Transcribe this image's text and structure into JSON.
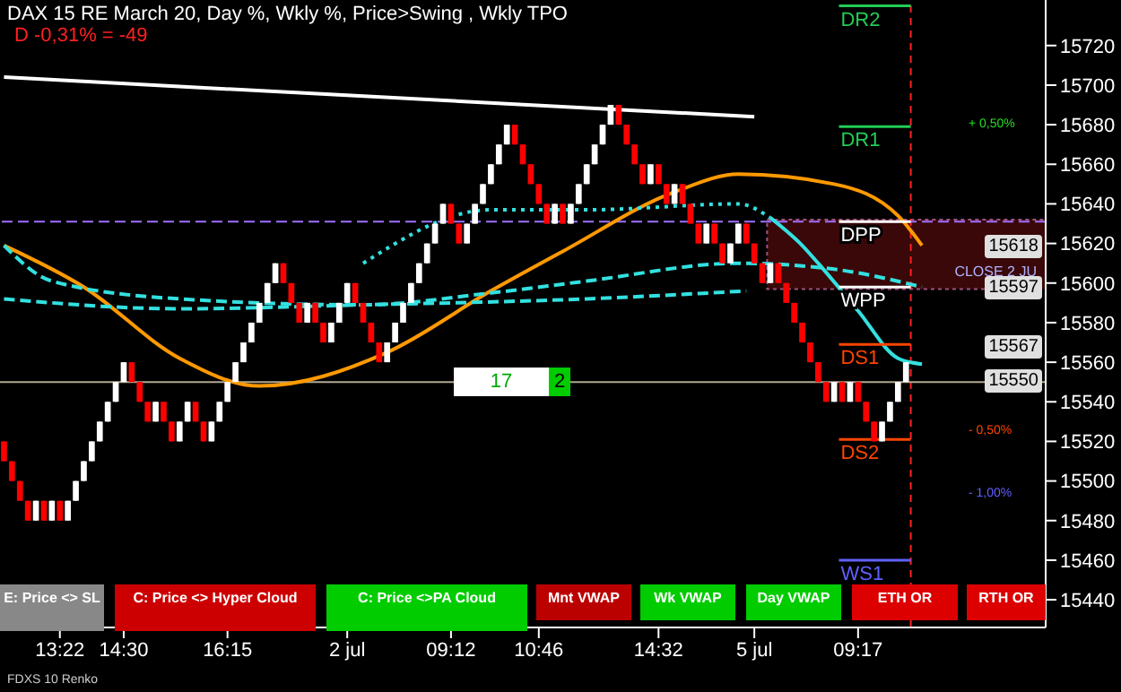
{
  "chart_data": {
    "type": "candlestick",
    "title": "DAX 15 RE March 20, Day %, Wkly %, Price>Swing  , Wkly TPO",
    "subtitle": "D -0,31% = -49",
    "categories": [
      null,
      null,
      null,
      null,
      null,
      null,
      null,
      "13:22",
      null,
      null,
      null,
      null,
      null,
      null,
      null,
      "14:30",
      null,
      null,
      null,
      null,
      null,
      null,
      null,
      null,
      null,
      null,
      null,
      null,
      "16:15",
      null,
      null,
      null,
      null,
      null,
      null,
      null,
      null,
      null,
      null,
      null,
      null,
      null,
      null,
      "2 jul",
      null,
      null,
      null,
      null,
      null,
      null,
      null,
      null,
      null,
      null,
      null,
      null,
      "09:12",
      null,
      null,
      null,
      null,
      null,
      null,
      null,
      null,
      null,
      null,
      "10:46",
      null,
      null,
      null,
      null,
      null,
      null,
      null,
      null,
      null,
      null,
      null,
      null,
      null,
      null,
      "14:32",
      null,
      null,
      null,
      null,
      null,
      null,
      null,
      null,
      null,
      null,
      null,
      "5 jul",
      null,
      null,
      null,
      null,
      null,
      null,
      null,
      null,
      null,
      null,
      null,
      null,
      "09:17",
      null,
      null,
      null,
      null,
      null,
      null,
      null,
      null,
      null,
      null,
      null,
      null,
      null,
      null,
      null,
      null,
      null,
      null,
      null,
      null,
      null,
      null,
      null
    ],
    "ohlc": [
      [
        15520,
        15520,
        15510,
        15510
      ],
      [
        15510,
        15510,
        15500,
        15500
      ],
      [
        15500,
        15500,
        15490,
        15490
      ],
      [
        15490,
        15490,
        15480,
        15480
      ],
      [
        15480,
        15490,
        15480,
        15490
      ],
      [
        15490,
        15490,
        15480,
        15480
      ],
      [
        15480,
        15490,
        15480,
        15490
      ],
      [
        15490,
        15490,
        15480,
        15480
      ],
      [
        15480,
        15490,
        15480,
        15490
      ],
      [
        15490,
        15500,
        15490,
        15500
      ],
      [
        15500,
        15510,
        15500,
        15510
      ],
      [
        15510,
        15520,
        15510,
        15520
      ],
      [
        15520,
        15530,
        15520,
        15530
      ],
      [
        15530,
        15540,
        15530,
        15540
      ],
      [
        15540,
        15550,
        15540,
        15550
      ],
      [
        15550,
        15560,
        15550,
        15560
      ],
      [
        15560,
        15560,
        15550,
        15550
      ],
      [
        15550,
        15550,
        15540,
        15540
      ],
      [
        15540,
        15540,
        15530,
        15530
      ],
      [
        15530,
        15540,
        15530,
        15540
      ],
      [
        15540,
        15540,
        15530,
        15530
      ],
      [
        15530,
        15530,
        15520,
        15520
      ],
      [
        15520,
        15530,
        15520,
        15530
      ],
      [
        15530,
        15540,
        15530,
        15540
      ],
      [
        15540,
        15540,
        15530,
        15530
      ],
      [
        15530,
        15530,
        15520,
        15520
      ],
      [
        15520,
        15530,
        15520,
        15530
      ],
      [
        15530,
        15540,
        15530,
        15540
      ],
      [
        15540,
        15550,
        15540,
        15550
      ],
      [
        15550,
        15560,
        15550,
        15560
      ],
      [
        15560,
        15570,
        15560,
        15570
      ],
      [
        15570,
        15580,
        15570,
        15580
      ],
      [
        15580,
        15590,
        15580,
        15590
      ],
      [
        15590,
        15600,
        15590,
        15600
      ],
      [
        15600,
        15610,
        15600,
        15610
      ],
      [
        15610,
        15610,
        15600,
        15600
      ],
      [
        15600,
        15600,
        15590,
        15590
      ],
      [
        15590,
        15590,
        15580,
        15580
      ],
      [
        15580,
        15590,
        15580,
        15590
      ],
      [
        15590,
        15590,
        15580,
        15580
      ],
      [
        15580,
        15580,
        15570,
        15570
      ],
      [
        15570,
        15580,
        15570,
        15580
      ],
      [
        15580,
        15590,
        15580,
        15590
      ],
      [
        15590,
        15600,
        15590,
        15600
      ],
      [
        15600,
        15600,
        15590,
        15590
      ],
      [
        15590,
        15590,
        15580,
        15580
      ],
      [
        15580,
        15580,
        15570,
        15570
      ],
      [
        15570,
        15570,
        15560,
        15560
      ],
      [
        15560,
        15570,
        15560,
        15570
      ],
      [
        15570,
        15580,
        15570,
        15580
      ],
      [
        15580,
        15590,
        15580,
        15590
      ],
      [
        15590,
        15600,
        15590,
        15600
      ],
      [
        15600,
        15610,
        15600,
        15610
      ],
      [
        15610,
        15620,
        15610,
        15620
      ],
      [
        15620,
        15630,
        15620,
        15630
      ],
      [
        15630,
        15640,
        15630,
        15640
      ],
      [
        15640,
        15640,
        15630,
        15630
      ],
      [
        15630,
        15630,
        15620,
        15620
      ],
      [
        15620,
        15630,
        15620,
        15630
      ],
      [
        15630,
        15640,
        15630,
        15640
      ],
      [
        15640,
        15650,
        15640,
        15650
      ],
      [
        15650,
        15660,
        15650,
        15660
      ],
      [
        15660,
        15670,
        15660,
        15670
      ],
      [
        15670,
        15680,
        15670,
        15680
      ],
      [
        15680,
        15680,
        15670,
        15670
      ],
      [
        15670,
        15670,
        15660,
        15660
      ],
      [
        15660,
        15660,
        15650,
        15650
      ],
      [
        15650,
        15650,
        15640,
        15640
      ],
      [
        15640,
        15640,
        15630,
        15630
      ],
      [
        15630,
        15640,
        15630,
        15640
      ],
      [
        15640,
        15640,
        15630,
        15630
      ],
      [
        15630,
        15640,
        15630,
        15640
      ],
      [
        15640,
        15650,
        15640,
        15650
      ],
      [
        15650,
        15660,
        15650,
        15660
      ],
      [
        15660,
        15670,
        15660,
        15670
      ],
      [
        15670,
        15680,
        15670,
        15680
      ],
      [
        15680,
        15690,
        15680,
        15690
      ],
      [
        15690,
        15690,
        15680,
        15680
      ],
      [
        15680,
        15680,
        15670,
        15670
      ],
      [
        15670,
        15670,
        15660,
        15660
      ],
      [
        15660,
        15660,
        15650,
        15650
      ],
      [
        15650,
        15660,
        15650,
        15660
      ],
      [
        15660,
        15660,
        15650,
        15650
      ],
      [
        15650,
        15650,
        15640,
        15640
      ],
      [
        15640,
        15650,
        15640,
        15650
      ],
      [
        15650,
        15650,
        15640,
        15640
      ],
      [
        15640,
        15640,
        15630,
        15630
      ],
      [
        15630,
        15630,
        15620,
        15620
      ],
      [
        15620,
        15630,
        15620,
        15630
      ],
      [
        15630,
        15630,
        15620,
        15620
      ],
      [
        15620,
        15620,
        15610,
        15610
      ],
      [
        15610,
        15620,
        15610,
        15620
      ],
      [
        15620,
        15630,
        15620,
        15630
      ],
      [
        15630,
        15630,
        15620,
        15620
      ],
      [
        15620,
        15620,
        15610,
        15610
      ],
      [
        15610,
        15610,
        15600,
        15600
      ],
      [
        15600,
        15610,
        15600,
        15610
      ],
      [
        15610,
        15610,
        15600,
        15600
      ],
      [
        15600,
        15600,
        15590,
        15590
      ],
      [
        15590,
        15590,
        15580,
        15580
      ],
      [
        15580,
        15580,
        15570,
        15570
      ],
      [
        15570,
        15570,
        15560,
        15560
      ],
      [
        15560,
        15560,
        15550,
        15550
      ],
      [
        15550,
        15550,
        15540,
        15540
      ],
      [
        15540,
        15550,
        15540,
        15550
      ],
      [
        15550,
        15550,
        15540,
        15540
      ],
      [
        15540,
        15550,
        15540,
        15550
      ],
      [
        15550,
        15550,
        15540,
        15540
      ],
      [
        15540,
        15540,
        15530,
        15530
      ],
      [
        15530,
        15530,
        15520,
        15520
      ],
      [
        15520,
        15530,
        15520,
        15530
      ],
      [
        15530,
        15540,
        15530,
        15540
      ],
      [
        15540,
        15550,
        15540,
        15550
      ],
      [
        15550,
        15560,
        15550,
        15560
      ],
      null,
      null,
      null,
      null,
      null,
      null,
      null,
      null,
      null,
      null,
      null,
      null,
      null,
      null,
      null,
      null,
      null
    ],
    "colors": [
      "#ff0000",
      "#ff0000",
      "#ff0000",
      "#ff0000",
      "#ffffff",
      "#ff0000",
      "#ffffff",
      "#ff0000",
      "#ffffff",
      "#ffffff",
      "#ffffff",
      "#ffffff",
      "#ffffff",
      "#ffffff",
      "#ffffff",
      "#ffffff",
      "#ff0000",
      "#ff0000",
      "#ff0000",
      "#ffffff",
      "#ff0000",
      "#ff0000",
      "#ffffff",
      "#ffffff",
      "#ff0000",
      "#ff0000",
      "#ffffff",
      "#ffffff",
      "#ffffff",
      "#ffffff",
      "#ffffff",
      "#ffffff",
      "#ffffff",
      "#ffffff",
      "#ffffff",
      "#ff0000",
      "#ff0000",
      "#ff0000",
      "#ffffff",
      "#ff0000",
      "#ff0000",
      "#ffffff",
      "#ffffff",
      "#ffffff",
      "#ff0000",
      "#ff0000",
      "#ff0000",
      "#ff0000",
      "#ffffff",
      "#ffffff",
      "#ffffff",
      "#ffffff",
      "#ffffff",
      "#ffffff",
      "#ffffff",
      "#ffffff",
      "#ff0000",
      "#ff0000",
      "#ffffff",
      "#ffffff",
      "#ffffff",
      "#ffffff",
      "#ffffff",
      "#ffffff",
      "#ff0000",
      "#ff0000",
      "#ff0000",
      "#ff0000",
      "#ff0000",
      "#ffffff",
      "#ff0000",
      "#ffffff",
      "#ffffff",
      "#ffffff",
      "#ffffff",
      "#ffffff",
      "#ffffff",
      "#ff0000",
      "#ff0000",
      "#ff0000",
      "#ff0000",
      "#ffffff",
      "#ff0000",
      "#ff0000",
      "#ffffff",
      "#ff0000",
      "#ff0000",
      "#ff0000",
      "#ffffff",
      "#ff0000",
      "#ff0000",
      "#ffffff",
      "#ffffff",
      "#ff0000",
      "#ff0000",
      "#ff0000",
      "#ffffff",
      "#ff0000",
      "#ff0000",
      "#ff0000",
      "#ff0000",
      "#ff0000",
      "#ff0000",
      "#ff0000",
      "#ffffff",
      "#ff0000",
      "#ffffff",
      "#ff0000",
      "#ff0000",
      "#ff0000",
      "#ffffff",
      "#ffffff",
      "#ffffff",
      "#ffffff",
      null,
      null,
      null,
      null,
      null,
      null,
      null,
      null,
      null,
      null,
      null,
      null,
      null,
      null,
      null,
      null,
      null
    ],
    "series": [
      {
        "type": "line",
        "color": "#ff9900",
        "values": [
          15619,
          null,
          null,
          null,
          null,
          null,
          null,
          null,
          null,
          null,
          15598,
          null,
          null,
          null,
          null,
          null,
          null,
          null,
          null,
          null,
          null,
          null,
          15562,
          null,
          null,
          null,
          null,
          null,
          null,
          null,
          null,
          null,
          15548,
          null,
          null,
          null,
          null,
          null,
          null,
          null,
          null,
          null,
          null,
          null,
          null,
          null,
          null,
          null,
          15565,
          null,
          null,
          null,
          null,
          null,
          null,
          null,
          null,
          null,
          null,
          null,
          null,
          15596,
          null,
          null,
          null,
          null,
          null,
          null,
          null,
          null,
          15616,
          null,
          null,
          null,
          null,
          null,
          null,
          null,
          null,
          null,
          null,
          null,
          null,
          null,
          15646,
          null,
          null,
          null,
          null,
          null,
          null,
          null,
          15655,
          null,
          null,
          null,
          null,
          null,
          null,
          null,
          null,
          null,
          null,
          null,
          15650,
          null,
          null,
          null,
          null,
          null,
          null,
          null,
          15634,
          null,
          null,
          15619,
          null,
          null,
          null,
          null,
          null,
          null,
          null,
          null,
          null,
          null,
          null,
          null,
          null,
          null,
          null
        ]
      },
      {
        "type": "line",
        "color": "#33e0e0",
        "line_style": "dashed",
        "values": [
          15619,
          null,
          null,
          null,
          null,
          null,
          15601,
          null,
          null,
          null,
          null,
          null,
          null,
          null,
          null,
          null,
          null,
          null,
          null,
          null,
          null,
          null,
          15592,
          null,
          null,
          null,
          null,
          null,
          null,
          null,
          null,
          null,
          null,
          null,
          null,
          null,
          null,
          null,
          null,
          null,
          null,
          null,
          null,
          null,
          null,
          15589,
          null,
          null,
          null,
          null,
          null,
          null,
          null,
          null,
          null,
          null,
          null,
          null,
          null,
          null,
          null,
          15595,
          null,
          null,
          null,
          null,
          null,
          null,
          null,
          null,
          null,
          null,
          null,
          15601,
          null,
          null,
          null,
          null,
          null,
          null,
          null,
          null,
          null,
          null,
          null,
          null,
          null,
          null,
          null,
          null,
          null,
          null,
          15610,
          null,
          null,
          null,
          null,
          null,
          null,
          null,
          null,
          null,
          null,
          null,
          15607,
          null,
          null,
          null,
          null,
          null,
          null,
          null,
          null,
          null,
          null,
          15598,
          null,
          null,
          null,
          null,
          null,
          null,
          null,
          null,
          null,
          null,
          null,
          null,
          null,
          null,
          null
        ]
      },
      {
        "type": "line",
        "color": "#33e0e0",
        "line_style": "dashed",
        "values": [
          15592,
          null,
          null,
          null,
          null,
          null,
          null,
          null,
          null,
          null,
          null,
          null,
          null,
          null,
          null,
          null,
          null,
          null,
          null,
          null,
          null,
          null,
          15587,
          null,
          null,
          null,
          null,
          null,
          null,
          null,
          null,
          null,
          null,
          null,
          null,
          null,
          null,
          null,
          null,
          null,
          null,
          null,
          null,
          null,
          null,
          15589,
          null,
          null,
          null,
          null,
          null,
          null,
          null,
          null,
          null,
          null,
          null,
          null,
          null,
          null,
          null,
          null,
          null,
          null,
          null,
          null,
          null,
          null,
          null,
          null,
          null,
          null,
          null,
          15592,
          null,
          null,
          null,
          null,
          null,
          null,
          null,
          null,
          null,
          null,
          null,
          null,
          null,
          null,
          null,
          null,
          null,
          null,
          null,
          15596,
          null,
          null,
          null,
          null,
          null,
          null,
          null,
          null,
          null,
          null,
          null,
          null,
          null,
          null,
          null,
          null,
          null,
          null,
          null,
          null,
          null,
          null,
          null,
          null,
          null,
          null,
          null,
          null,
          null,
          null,
          null,
          null,
          null,
          null,
          null,
          null,
          null
        ]
      },
      {
        "type": "line",
        "color": "#33e0e0",
        "line_style": "dotted",
        "values": [
          null,
          null,
          null,
          null,
          null,
          null,
          null,
          null,
          null,
          null,
          null,
          null,
          null,
          null,
          null,
          null,
          null,
          null,
          null,
          null,
          null,
          null,
          null,
          null,
          null,
          null,
          null,
          null,
          null,
          null,
          null,
          null,
          null,
          null,
          null,
          null,
          null,
          null,
          null,
          null,
          null,
          null,
          null,
          null,
          null,
          15610,
          null,
          null,
          null,
          null,
          null,
          null,
          null,
          null,
          null,
          null,
          null,
          null,
          null,
          null,
          null,
          15637,
          null,
          null,
          null,
          null,
          null,
          null,
          null,
          null,
          null,
          null,
          null,
          15637,
          null,
          null,
          null,
          null,
          null,
          null,
          null,
          null,
          null,
          null,
          null,
          null,
          null,
          null,
          null,
          null,
          null,
          null,
          15640,
          null,
          null,
          null,
          15633,
          null,
          null,
          null,
          null,
          null,
          null,
          null,
          null,
          null,
          null,
          null,
          null,
          null,
          null,
          null,
          null,
          null,
          null,
          null,
          null,
          null,
          null,
          null,
          null,
          null,
          null,
          null,
          null,
          null,
          null,
          null,
          null,
          null,
          null
        ]
      },
      {
        "type": "line",
        "color": "#33e0e0",
        "values": [
          null,
          null,
          null,
          null,
          null,
          null,
          null,
          null,
          null,
          null,
          null,
          null,
          null,
          null,
          null,
          null,
          null,
          null,
          null,
          null,
          null,
          null,
          null,
          null,
          null,
          null,
          null,
          null,
          null,
          null,
          null,
          null,
          null,
          null,
          null,
          null,
          null,
          null,
          null,
          null,
          null,
          null,
          null,
          null,
          null,
          null,
          null,
          null,
          null,
          null,
          null,
          null,
          null,
          null,
          null,
          null,
          null,
          null,
          null,
          null,
          null,
          null,
          null,
          null,
          null,
          null,
          null,
          null,
          null,
          null,
          null,
          null,
          null,
          null,
          null,
          null,
          null,
          null,
          null,
          null,
          null,
          null,
          null,
          null,
          null,
          null,
          null,
          null,
          null,
          null,
          null,
          null,
          null,
          null,
          null,
          null,
          15633,
          null,
          null,
          null,
          15619,
          null,
          15610,
          null,
          null,
          null,
          null,
          15586,
          null,
          null,
          null,
          null,
          15562,
          null,
          null,
          15559,
          null,
          null,
          null,
          null,
          null,
          null,
          null,
          null,
          null,
          null,
          null,
          null,
          null,
          null,
          null
        ]
      },
      {
        "type": "line",
        "color": "#ffffff",
        "values": [
          15704,
          null,
          null,
          null,
          null,
          null,
          null,
          null,
          null,
          null,
          null,
          null,
          null,
          null,
          null,
          null,
          null,
          null,
          null,
          null,
          null,
          null,
          null,
          null,
          null,
          null,
          null,
          null,
          null,
          null,
          null,
          null,
          null,
          null,
          null,
          null,
          null,
          null,
          null,
          null,
          null,
          null,
          null,
          null,
          null,
          null,
          null,
          null,
          null,
          null,
          null,
          null,
          null,
          null,
          null,
          null,
          null,
          null,
          null,
          null,
          null,
          null,
          null,
          null,
          null,
          null,
          null,
          null,
          null,
          null,
          null,
          null,
          null,
          null,
          null,
          null,
          null,
          null,
          null,
          null,
          null,
          null,
          null,
          null,
          null,
          null,
          null,
          null,
          null,
          null,
          null,
          null,
          null,
          null,
          15684,
          null,
          null,
          null,
          null,
          null,
          null,
          null,
          null,
          null,
          null,
          null,
          null,
          null,
          null,
          null,
          null,
          null,
          null,
          null,
          null,
          null,
          null,
          null,
          null,
          null,
          null,
          null,
          null,
          null,
          null,
          null,
          null,
          null,
          null,
          null,
          null
        ]
      }
    ],
    "ylim": [
      15426,
      15743
    ],
    "yticks": [
      15440,
      15460,
      15480,
      15500,
      15520,
      15540,
      15560,
      15580,
      15600,
      15620,
      15640,
      15660,
      15680,
      15700,
      15720
    ],
    "ref_lines": [
      {
        "axis": "y",
        "value": 15631,
        "color": "#a070ff",
        "line_style": "dashed"
      },
      {
        "axis": "y",
        "value": 15550,
        "color": "#b0a890"
      },
      {
        "axis": "y",
        "value": 15740,
        "label": "DR2",
        "color": "#22cc55"
      },
      {
        "axis": "y",
        "value": 15679,
        "label": "DR1",
        "color": "#22cc55"
      },
      {
        "axis": "y",
        "value": 15631,
        "label": "DPP",
        "color": "#ffffff"
      },
      {
        "axis": "y",
        "value": 15598,
        "label": "WPP",
        "color": "#ffffff"
      },
      {
        "axis": "y",
        "value": 15569,
        "label": "DS1",
        "color": "#ff4400"
      },
      {
        "axis": "y",
        "value": 15521,
        "label": "DS2",
        "color": "#ff4400"
      },
      {
        "axis": "y",
        "value": 15460,
        "label": "WS1",
        "color": "#6060ff"
      }
    ],
    "bands": [
      {
        "axis": "y",
        "from": 15597,
        "to": 15632,
        "label": "CLOSE 2 JU",
        "color": "#3a0808"
      }
    ],
    "annotations": [
      "+ 0,50%",
      "- 0,50%",
      "- 1,00%",
      {
        "text": "15618",
        "y": 15618
      },
      {
        "text": "15597",
        "y": 15597
      },
      {
        "text": "15567",
        "y": 15567
      },
      {
        "text": "15550",
        "y": 15550
      },
      "17",
      "2",
      "E: Price <> SL",
      "C: Price <> Hyper Cloud",
      "C: Price <>PA Cloud",
      "Mnt VWAP",
      "Wk VWAP",
      "Day VWAP",
      "ETH OR",
      "RTH OR",
      "FDXS 10 Renko"
    ],
    "grid": false,
    "legend": false,
    "marker": "none"
  }
}
